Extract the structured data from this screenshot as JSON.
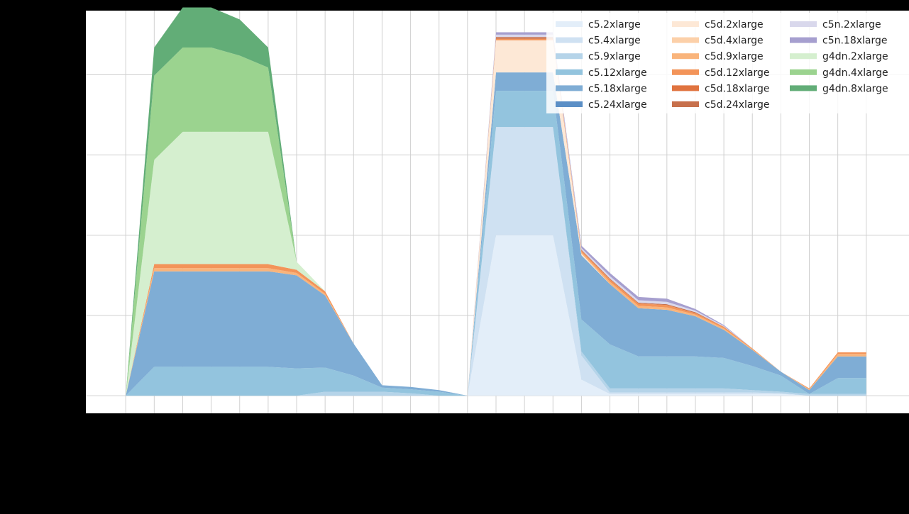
{
  "chart_data": {
    "type": "area",
    "stacked": true,
    "title": "",
    "xlabel": "",
    "ylabel": "",
    "x": [
      0,
      1,
      2,
      3,
      4,
      5,
      6,
      7,
      8,
      9,
      10,
      11,
      12,
      13,
      14,
      15,
      16,
      17,
      18,
      19,
      20,
      21,
      22,
      23,
      24,
      25,
      26
    ],
    "xlim": [
      -1.4,
      27.5
    ],
    "ylim": [
      -0.22,
      4.8
    ],
    "grid": true,
    "legend": {
      "position": "top-right",
      "columns": 3
    },
    "series": [
      {
        "name": "c5.2xlarge",
        "color": "#e3eef9",
        "values": [
          0,
          0,
          0,
          0,
          0,
          0,
          0,
          0,
          0,
          0,
          0,
          0,
          0,
          2.0,
          2.0,
          2.0,
          0.2,
          0.02,
          0.02,
          0.02,
          0.02,
          0.02,
          0.02,
          0.02,
          0,
          0,
          0
        ]
      },
      {
        "name": "c5.4xlarge",
        "color": "#cfe1f2",
        "values": [
          0,
          0,
          0,
          0,
          0,
          0,
          0,
          0,
          0,
          0,
          0,
          0,
          0,
          1.35,
          1.35,
          1.35,
          0.3,
          0.02,
          0.02,
          0.02,
          0.02,
          0.02,
          0.02,
          0.01,
          0,
          0,
          0
        ]
      },
      {
        "name": "c5.9xlarge",
        "color": "#b5d4e9",
        "values": [
          0,
          0,
          0,
          0,
          0,
          0,
          0,
          0.05,
          0.05,
          0.05,
          0.03,
          0,
          0,
          0,
          0,
          0,
          0.05,
          0.05,
          0.05,
          0.05,
          0.05,
          0.05,
          0.03,
          0.02,
          0.02,
          0.02,
          0.02
        ]
      },
      {
        "name": "c5.12xlarge",
        "color": "#93c4de",
        "values": [
          0,
          0.36,
          0.36,
          0.36,
          0.36,
          0.36,
          0.34,
          0.3,
          0.2,
          0.05,
          0.05,
          0.05,
          0,
          0.45,
          0.45,
          0.45,
          0.4,
          0.55,
          0.4,
          0.4,
          0.4,
          0.38,
          0.3,
          0.2,
          0,
          0.2,
          0.2
        ]
      },
      {
        "name": "c5.18xlarge",
        "color": "#7fadd5",
        "values": [
          0,
          1.19,
          1.19,
          1.19,
          1.19,
          1.19,
          1.16,
          0.9,
          0.4,
          0.03,
          0.03,
          0.02,
          0,
          0.23,
          0.23,
          0.23,
          0.8,
          0.75,
          0.6,
          0.58,
          0.5,
          0.35,
          0.2,
          0.05,
          0.05,
          0.27,
          0.27
        ]
      },
      {
        "name": "c5.24xlarge",
        "color": "#5b8fc6",
        "values": [
          0,
          0,
          0,
          0,
          0,
          0,
          0,
          0,
          0,
          0,
          0,
          0,
          0,
          0,
          0,
          0,
          0,
          0,
          0,
          0,
          0,
          0,
          0,
          0,
          0,
          0,
          0
        ]
      },
      {
        "name": "c5d.2xlarge",
        "color": "#fde8d6",
        "values": [
          0,
          0,
          0,
          0,
          0,
          0,
          0,
          0,
          0,
          0,
          0,
          0,
          0,
          0.4,
          0.4,
          0.4,
          0.02,
          0,
          0,
          0,
          0,
          0,
          0,
          0,
          0,
          0,
          0
        ]
      },
      {
        "name": "c5d.4xlarge",
        "color": "#fcd0a9",
        "values": [
          0,
          0,
          0,
          0,
          0,
          0,
          0,
          0,
          0,
          0,
          0,
          0,
          0,
          0,
          0,
          0,
          0,
          0,
          0,
          0,
          0,
          0,
          0,
          0,
          0,
          0,
          0
        ]
      },
      {
        "name": "c5d.9xlarge",
        "color": "#f9b47b",
        "values": [
          0,
          0.04,
          0.04,
          0.04,
          0.04,
          0.04,
          0.03,
          0.02,
          0,
          0,
          0,
          0,
          0,
          0,
          0,
          0,
          0.02,
          0.03,
          0.03,
          0.03,
          0.02,
          0.02,
          0.01,
          0,
          0.01,
          0.03,
          0.03
        ]
      },
      {
        "name": "c5d.12xlarge",
        "color": "#f39459",
        "values": [
          0,
          0.05,
          0.05,
          0.05,
          0.05,
          0.05,
          0.04,
          0.03,
          0,
          0,
          0,
          0,
          0,
          0.02,
          0.02,
          0.02,
          0.02,
          0.03,
          0.03,
          0.03,
          0.02,
          0.02,
          0.01,
          0,
          0.01,
          0.02,
          0.02
        ]
      },
      {
        "name": "c5d.18xlarge",
        "color": "#e0733f",
        "values": [
          0,
          0,
          0,
          0,
          0,
          0,
          0,
          0,
          0,
          0,
          0,
          0,
          0,
          0,
          0,
          0,
          0,
          0,
          0,
          0,
          0,
          0,
          0,
          0,
          0,
          0,
          0
        ]
      },
      {
        "name": "c5d.24xlarge",
        "color": "#c7704c",
        "values": [
          0,
          0,
          0,
          0,
          0,
          0,
          0,
          0,
          0,
          0,
          0,
          0,
          0,
          0.02,
          0.02,
          0.02,
          0.01,
          0.01,
          0.01,
          0.01,
          0.01,
          0,
          0,
          0,
          0,
          0,
          0
        ]
      },
      {
        "name": "c5n.2xlarge",
        "color": "#d9d8ec",
        "values": [
          0,
          0,
          0,
          0,
          0,
          0,
          0,
          0,
          0,
          0,
          0,
          0,
          0,
          0.03,
          0.03,
          0.03,
          0.02,
          0.03,
          0.03,
          0.03,
          0.02,
          0.01,
          0,
          0,
          0,
          0,
          0
        ]
      },
      {
        "name": "c5n.18xlarge",
        "color": "#a69fcf",
        "values": [
          0,
          0,
          0,
          0,
          0,
          0,
          0,
          0,
          0,
          0,
          0,
          0,
          0,
          0.03,
          0.03,
          0.03,
          0.03,
          0.04,
          0.04,
          0.04,
          0.02,
          0.01,
          0,
          0,
          0,
          0,
          0
        ]
      },
      {
        "name": "g4dn.2xlarge",
        "color": "#d5efcf",
        "values": [
          0,
          1.3,
          1.65,
          1.65,
          1.65,
          1.65,
          0.1,
          0,
          0,
          0,
          0,
          0,
          0,
          0,
          0,
          0,
          0,
          0,
          0,
          0,
          0,
          0,
          0,
          0,
          0,
          0,
          0
        ]
      },
      {
        "name": "g4dn.4xlarge",
        "color": "#9bd38f",
        "values": [
          0,
          1.05,
          1.05,
          1.05,
          0.95,
          0.8,
          0,
          0,
          0,
          0,
          0,
          0,
          0,
          0,
          0,
          0,
          0,
          0,
          0,
          0,
          0,
          0,
          0,
          0,
          0,
          0,
          0
        ]
      },
      {
        "name": "g4dn.8xlarge",
        "color": "#62ad77",
        "values": [
          0,
          0.35,
          0.5,
          0.5,
          0.45,
          0.25,
          0,
          0,
          0,
          0,
          0,
          0,
          0,
          0,
          0,
          0,
          0,
          0,
          0,
          0,
          0,
          0,
          0,
          0,
          0,
          0,
          0
        ]
      }
    ]
  }
}
